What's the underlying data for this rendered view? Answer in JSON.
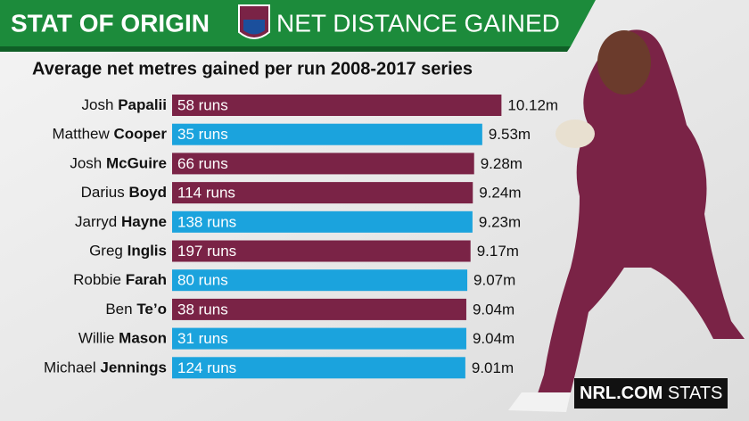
{
  "chart_data": {
    "type": "bar",
    "orientation": "horizontal",
    "header_left": "STAT OF ORIGIN",
    "header_right": "NET DISTANCE GAINED",
    "title": "Average net metres gained per run 2008-2017 series",
    "source": {
      "brand": "NRL.COM",
      "word": "STATS"
    },
    "categories": [
      {
        "first": "Josh",
        "last": "Papalii"
      },
      {
        "first": "Matthew",
        "last": "Cooper"
      },
      {
        "first": "Josh",
        "last": "McGuire"
      },
      {
        "first": "Darius",
        "last": "Boyd"
      },
      {
        "first": "Jarryd",
        "last": "Hayne"
      },
      {
        "first": "Greg",
        "last": "Inglis"
      },
      {
        "first": "Robbie",
        "last": "Farah"
      },
      {
        "first": "Ben",
        "last": "Te’o"
      },
      {
        "first": "Willie",
        "last": "Mason"
      },
      {
        "first": "Michael",
        "last": "Jennings"
      }
    ],
    "values": [
      10.12,
      9.53,
      9.28,
      9.24,
      9.23,
      9.17,
      9.07,
      9.04,
      9.04,
      9.01
    ],
    "value_labels": [
      "10.12m",
      "9.53m",
      "9.28m",
      "9.24m",
      "9.23m",
      "9.17m",
      "9.07m",
      "9.04m",
      "9.04m",
      "9.01m"
    ],
    "bar_labels": [
      "58 runs",
      "35 runs",
      "66 runs",
      "114 runs",
      "138 runs",
      "197 runs",
      "80 runs",
      "38 runs",
      "31 runs",
      "124 runs"
    ],
    "colors": [
      "#7a2346",
      "#1ba3dd",
      "#7a2346",
      "#7a2346",
      "#1ba3dd",
      "#7a2346",
      "#1ba3dd",
      "#7a2346",
      "#1ba3dd",
      "#1ba3dd"
    ]
  }
}
